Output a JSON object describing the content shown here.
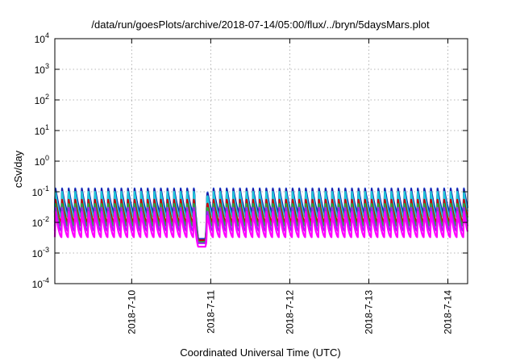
{
  "chart_data": {
    "type": "line",
    "title": "/data/run/goesPlots/archive/2018-07-14/05:00/flux/../bryn/5daysMars.plot",
    "xlabel": "Coordinated Universal Time (UTC)",
    "ylabel": "cSv/day",
    "x_range": [
      "2018-07-09 00:40",
      "2018-07-14 06:00"
    ],
    "x_ticks": [
      {
        "label": "2018-7-10",
        "value": "2018-07-10 00:00"
      },
      {
        "label": "2018-7-11",
        "value": "2018-07-11 00:00"
      },
      {
        "label": "2018-7-12",
        "value": "2018-07-12 00:00"
      },
      {
        "label": "2018-7-13",
        "value": "2018-07-13 00:00"
      },
      {
        "label": "2018-7-14",
        "value": "2018-07-14 00:00"
      }
    ],
    "y_scale": "log",
    "ylim": [
      0.0001,
      10000
    ],
    "y_ticks": [
      {
        "base": "10",
        "exp": "-4"
      },
      {
        "base": "10",
        "exp": "-3"
      },
      {
        "base": "10",
        "exp": "-2"
      },
      {
        "base": "10",
        "exp": "-1"
      },
      {
        "base": "10",
        "exp": "0"
      },
      {
        "base": "10",
        "exp": "1"
      },
      {
        "base": "10",
        "exp": "2"
      },
      {
        "base": "10",
        "exp": "3"
      },
      {
        "base": "10",
        "exp": "4"
      }
    ],
    "grid": true,
    "legend": "none",
    "pattern": {
      "period_hours": 2.0,
      "dip_start": "2018-07-10 19:00",
      "dip_end": "2018-07-10 23:00"
    },
    "series": [
      {
        "color": "#2850d8",
        "peak": 0.13,
        "trough": 0.022,
        "dip_low": 0.0029
      },
      {
        "color": "#1a1aa0",
        "peak": 0.12,
        "trough": 0.02,
        "dip_low": 0.0027
      },
      {
        "color": "#20c8d8",
        "peak": 0.1,
        "trough": 0.015,
        "dip_low": 0.0025
      },
      {
        "color": "#cc0000",
        "peak": 0.055,
        "trough": 0.01,
        "dip_low": 0.0026
      },
      {
        "color": "#22b040",
        "peak": 0.04,
        "trough": 0.0075,
        "dip_low": 0.0023
      },
      {
        "color": "#a020f0",
        "peak": 0.03,
        "trough": 0.0052,
        "dip_low": 0.0021
      },
      {
        "color": "#ff00ff",
        "peak": 0.022,
        "trough": 0.0033,
        "dip_low": 0.0016
      }
    ]
  }
}
